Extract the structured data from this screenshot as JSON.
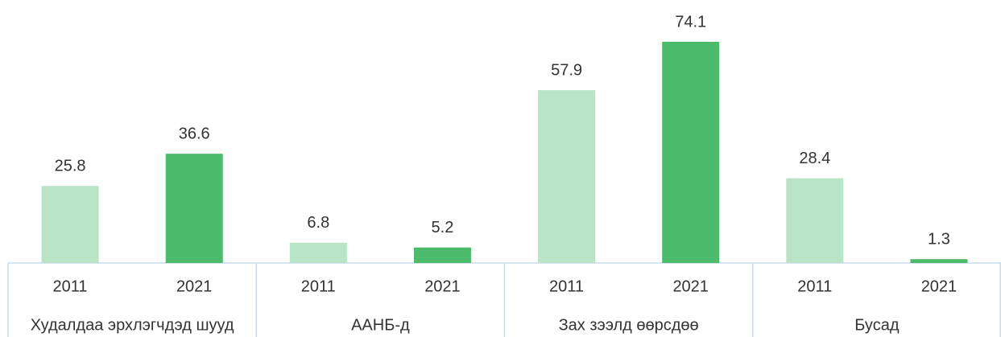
{
  "chart_data": {
    "type": "bar",
    "categories": [
      "Худалдаа эрхлэгчдэд шууд",
      "ААНБ-д",
      "Зах зээлд өөрсдөө",
      "Бусад"
    ],
    "series": [
      {
        "name": "2011",
        "color": "#b9e4c7",
        "values": [
          25.8,
          6.8,
          57.9,
          28.4
        ]
      },
      {
        "name": "2021",
        "color": "#4dbb6c",
        "values": [
          36.6,
          5.2,
          74.1,
          1.3
        ]
      }
    ]
  }
}
